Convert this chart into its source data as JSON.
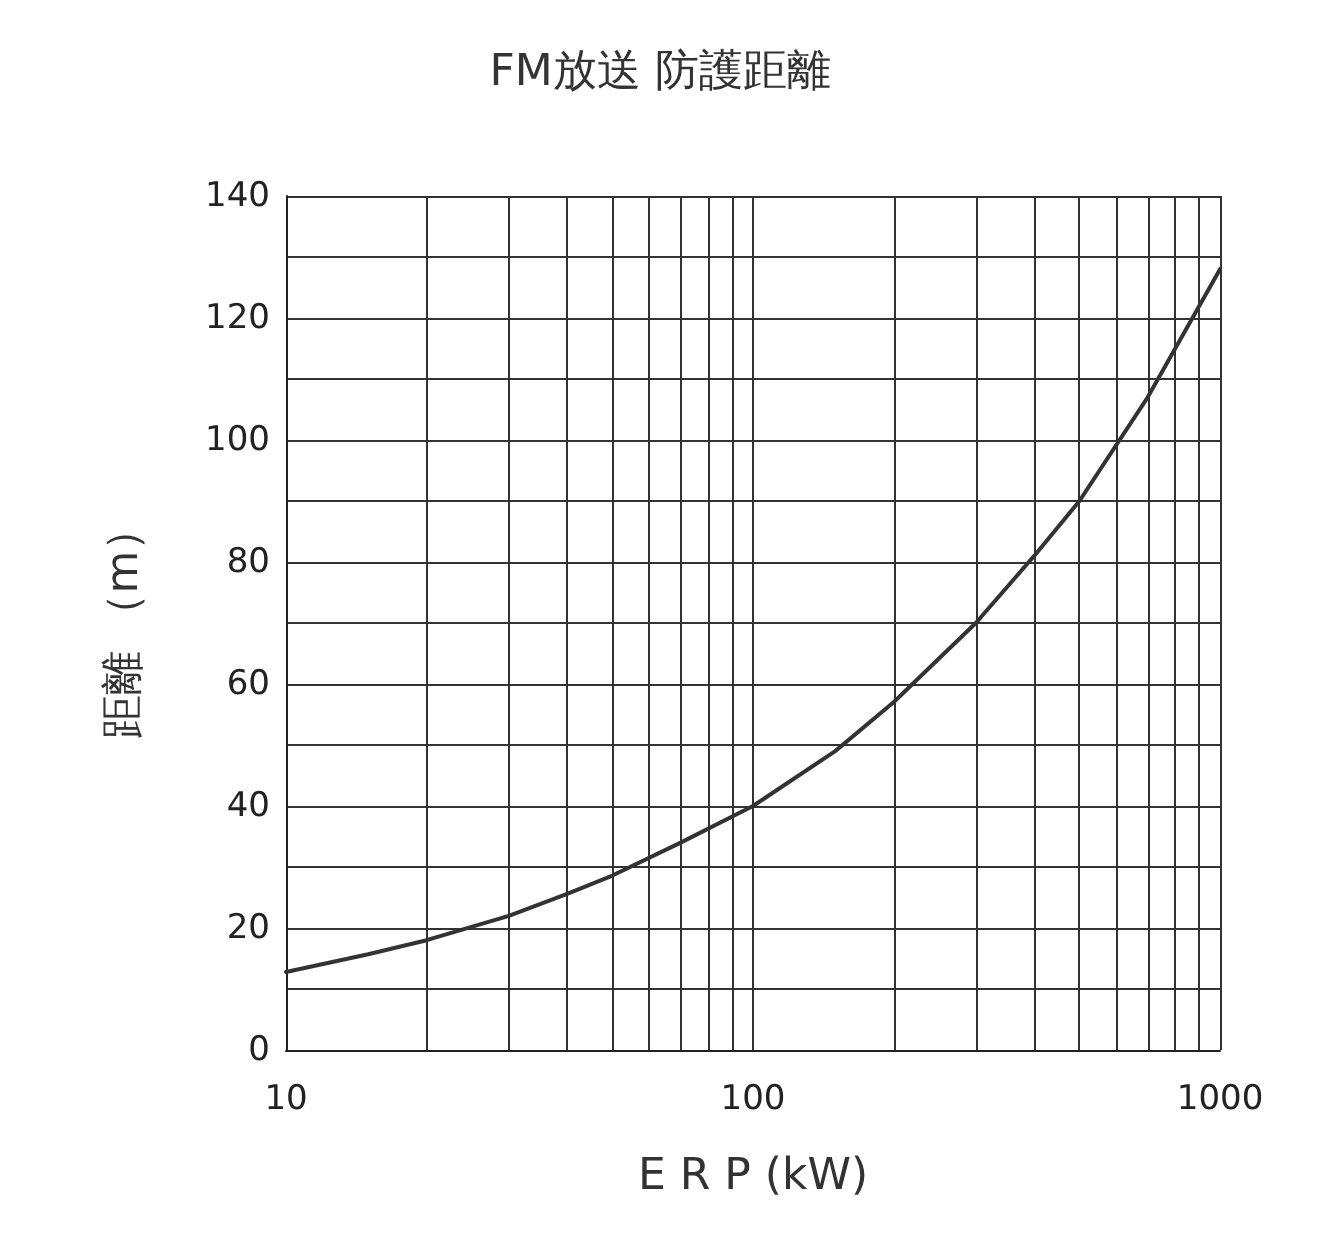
{
  "chart_data": {
    "type": "line",
    "title": "FM放送 防護距離",
    "xlabel": "E R P (kW)",
    "ylabel": "距離 （m）",
    "log": "x",
    "grid": true,
    "marker": "none",
    "line_style": "solid",
    "x": [
      10,
      15,
      20,
      30,
      40,
      50,
      70,
      100,
      150,
      200,
      300,
      400,
      500,
      700,
      1000
    ],
    "series": [
      {
        "color": "#333333",
        "values": [
          12.8,
          15.7,
          18,
          22,
          25.6,
          28.6,
          34,
          40,
          49,
          57,
          70,
          81,
          90,
          107,
          128
        ]
      }
    ],
    "xlim": [
      10,
      1000
    ],
    "xticks": [
      10,
      {
        "value": 20,
        "label": null
      },
      {
        "value": 30,
        "label": null
      },
      {
        "value": 40,
        "label": null
      },
      {
        "value": 50,
        "label": null
      },
      {
        "value": 60,
        "label": null
      },
      {
        "value": 70,
        "label": null
      },
      {
        "value": 80,
        "label": null
      },
      {
        "value": 90,
        "label": null
      },
      100,
      {
        "value": 200,
        "label": null
      },
      {
        "value": 300,
        "label": null
      },
      {
        "value": 400,
        "label": null
      },
      {
        "value": 500,
        "label": null
      },
      {
        "value": 600,
        "label": null
      },
      {
        "value": 700,
        "label": null
      },
      {
        "value": 800,
        "label": null
      },
      {
        "value": 900,
        "label": null
      },
      1000
    ],
    "ylim": [
      0,
      140
    ],
    "yticks": [
      0,
      {
        "value": 10,
        "label": null
      },
      20,
      {
        "value": 30,
        "label": null
      },
      40,
      {
        "value": 50,
        "label": null
      },
      60,
      {
        "value": 70,
        "label": null
      },
      80,
      {
        "value": 90,
        "label": null
      },
      100,
      {
        "value": 110,
        "label": null
      },
      120,
      {
        "value": 130,
        "label": null
      },
      140
    ]
  }
}
